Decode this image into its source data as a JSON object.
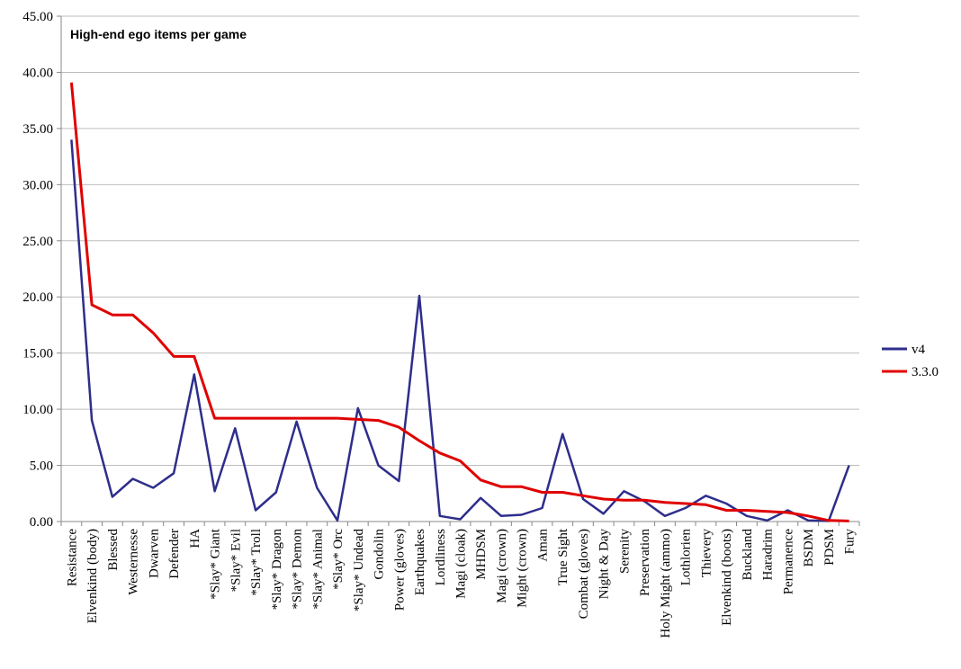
{
  "chart_data": {
    "type": "line",
    "title": "High-end ego items per game",
    "xlabel": "",
    "ylabel": "",
    "ylim": [
      0,
      45
    ],
    "ytick_step": 5,
    "ytick_labels": [
      "0.00",
      "5.00",
      "10.00",
      "15.00",
      "20.00",
      "25.00",
      "30.00",
      "35.00",
      "40.00",
      "45.00"
    ],
    "grid": true,
    "legend_position": "right",
    "categories": [
      "Resistance",
      "Elvenkind (body)",
      "Blessed",
      "Westernesse",
      "Dwarven",
      "Defender",
      "HA",
      "*Slay* Giant",
      "*Slay* Evil",
      "*Slay* Troll",
      "*Slay* Dragon",
      "*Slay* Demon",
      "*Slay* Animal",
      "*Slay* Orc",
      "*Slay* Undead",
      "Gondolin",
      "Power (gloves)",
      "Earthquakes",
      "Lordliness",
      "Magi (cloak)",
      "MHDSM",
      "Magi (crown)",
      "Might (crown)",
      "Aman",
      "True Sight",
      "Combat (gloves)",
      "Night & Day",
      "Serenity",
      "Preservation",
      "Holy Might (ammo)",
      "Lothlorien",
      "Thievery",
      "Elvenkind (boots)",
      "Buckland",
      "Haradrim",
      "Permanence",
      "BSDM",
      "PDSM",
      "Fury"
    ],
    "series": [
      {
        "name": "v4",
        "color": "#2e2e8c",
        "values": [
          34.0,
          9.0,
          2.2,
          3.8,
          3.0,
          4.3,
          13.1,
          2.7,
          8.3,
          1.0,
          2.6,
          8.9,
          3.0,
          0.1,
          10.1,
          5.0,
          3.6,
          20.1,
          0.5,
          0.2,
          2.1,
          0.5,
          0.6,
          1.2,
          7.8,
          2.0,
          0.7,
          2.7,
          1.8,
          0.5,
          1.2,
          2.3,
          1.6,
          0.5,
          0.1,
          1.0,
          0.1,
          0.05,
          5.0
        ]
      },
      {
        "name": "3.3.0",
        "color": "#e00000",
        "values": [
          39.1,
          19.3,
          18.4,
          18.4,
          16.8,
          14.7,
          14.7,
          9.2,
          9.2,
          9.2,
          9.2,
          9.2,
          9.2,
          9.2,
          9.1,
          9.0,
          8.4,
          7.2,
          6.1,
          5.4,
          3.7,
          3.1,
          3.1,
          2.6,
          2.6,
          2.3,
          2.0,
          1.9,
          1.9,
          1.7,
          1.6,
          1.5,
          1.0,
          1.0,
          0.9,
          0.8,
          0.5,
          0.1,
          0.05
        ]
      }
    ]
  }
}
